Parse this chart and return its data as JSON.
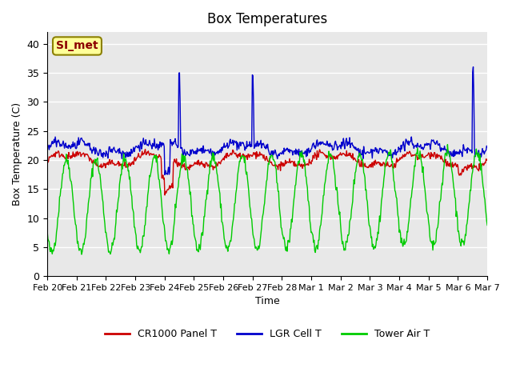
{
  "title": "Box Temperatures",
  "xlabel": "Time",
  "ylabel": "Box Temperature (C)",
  "ylim": [
    0,
    42
  ],
  "xlim_days": 15.5,
  "background_color": "#ffffff",
  "plot_bg_color": "#e8e8e8",
  "grid_color": "#ffffff",
  "annotation_text": "SI_met",
  "annotation_bg": "#ffff99",
  "annotation_border": "#8B8000",
  "legend_labels": [
    "CR1000 Panel T",
    "LGR Cell T",
    "Tower Air T"
  ],
  "line_colors": [
    "#cc0000",
    "#0000cc",
    "#00cc00"
  ],
  "xtick_labels": [
    "Feb 20",
    "Feb 21",
    "Feb 22",
    "Feb 23",
    "Feb 24",
    "Feb 25",
    "Feb 26",
    "Feb 27",
    "Feb 28",
    "Mar 1",
    "Mar 2",
    "Mar 3",
    "Mar 4",
    "Mar 5",
    "Mar 6",
    "Mar 7"
  ],
  "ytick_labels": [
    "0",
    "5",
    "10",
    "15",
    "20",
    "25",
    "30",
    "35",
    "40"
  ]
}
